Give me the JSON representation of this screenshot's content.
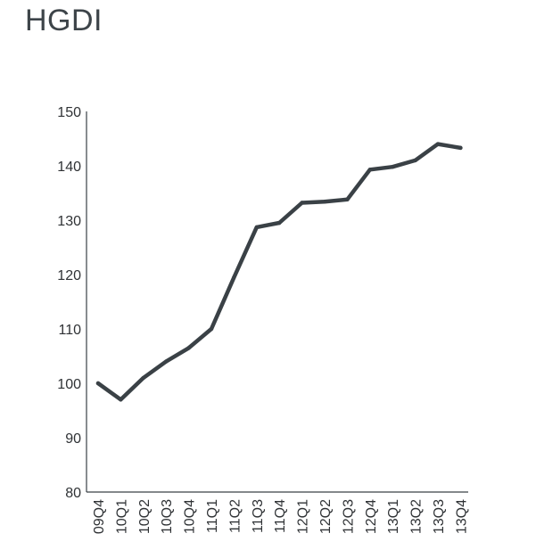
{
  "chart_data": {
    "type": "line",
    "title": "HGDI",
    "xlabel": "",
    "ylabel": "",
    "categories": [
      "09Q4",
      "10Q1",
      "10Q2",
      "10Q3",
      "10Q4",
      "11Q1",
      "11Q2",
      "11Q3",
      "11Q4",
      "12Q1",
      "12Q2",
      "12Q3",
      "12Q4",
      "13Q1",
      "13Q2",
      "13Q3",
      "13Q4"
    ],
    "series": [
      {
        "values": [
          100,
          97,
          101,
          104,
          106.5,
          110,
          119.5,
          128.7,
          129.5,
          133.2,
          133.4,
          133.8,
          139.3,
          139.8,
          141,
          144,
          143.3
        ],
        "color": "#3a4146"
      }
    ],
    "ylim": [
      80,
      150
    ],
    "yticks": [
      80,
      90,
      100,
      110,
      120,
      130,
      140,
      150
    ],
    "grid": false,
    "legend": "none",
    "axis_color": "#3a4146",
    "text_color": "#2f3235"
  }
}
